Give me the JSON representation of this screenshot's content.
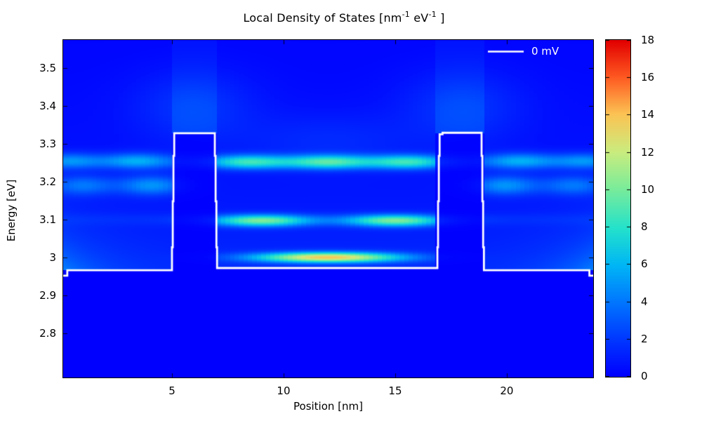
{
  "figure": {
    "title": {
      "pre": "Local Density of States [nm",
      "sup1": "-1",
      "mid": " eV",
      "sup2": "-1",
      "end": " ]"
    }
  },
  "axes": {
    "x": {
      "label": "Position [nm]",
      "range": [
        0.126,
        23.87
      ],
      "ticks": [
        5,
        10,
        15,
        20
      ]
    },
    "y": {
      "label": "Energy [eV]",
      "range": [
        2.683,
        3.574
      ],
      "ticks": [
        2.8,
        2.9,
        3,
        3.1,
        3.2,
        3.3,
        3.4,
        3.5
      ]
    },
    "colorbar": {
      "range": [
        0,
        18
      ],
      "ticks": [
        0,
        2,
        4,
        6,
        8,
        10,
        12,
        14,
        16,
        18
      ]
    }
  },
  "legend": {
    "label": "0 mV",
    "line_color": "#ffffff"
  },
  "chart_data": {
    "type": "heatmap",
    "title": "Local Density of States [nm-1 eV-1]",
    "xlabel": "Position [nm]",
    "ylabel": "Energy [eV]",
    "x_range_nm": [
      0.126,
      23.87
    ],
    "energy_range_eV": [
      2.683,
      3.574
    ],
    "value_range": [
      0,
      18
    ],
    "x_quantum_nm": 0.2,
    "colormap_stops": [
      [
        0.0,
        "#0000ff"
      ],
      [
        0.11,
        "#0038ff"
      ],
      [
        0.22,
        "#0076ff"
      ],
      [
        0.33,
        "#00b6f6"
      ],
      [
        0.44,
        "#24e2cc"
      ],
      [
        0.56,
        "#7cec9a"
      ],
      [
        0.67,
        "#ccec7e"
      ],
      [
        0.78,
        "#fcc454"
      ],
      [
        0.89,
        "#ff5a22"
      ],
      [
        1.0,
        "#e20000"
      ]
    ],
    "potential_levels_eV": [
      [
        0.126,
        5.0,
        2.966
      ],
      [
        5.0,
        7.02,
        3.328
      ],
      [
        7.02,
        16.89,
        2.972
      ],
      [
        16.89,
        18.98,
        3.328
      ],
      [
        18.98,
        23.87,
        2.966
      ]
    ],
    "potential_profile_0mV": [
      [
        0.126,
        2.952
      ],
      [
        0.31,
        2.952
      ],
      [
        0.31,
        2.966
      ],
      [
        5.0,
        2.966
      ],
      [
        5.0,
        3.027
      ],
      [
        5.035,
        3.027
      ],
      [
        5.035,
        3.148
      ],
      [
        5.065,
        3.148
      ],
      [
        5.065,
        3.268
      ],
      [
        5.1,
        3.268
      ],
      [
        5.1,
        3.328
      ],
      [
        6.92,
        3.328
      ],
      [
        6.92,
        3.268
      ],
      [
        6.955,
        3.268
      ],
      [
        6.955,
        3.148
      ],
      [
        6.99,
        3.148
      ],
      [
        6.99,
        3.027
      ],
      [
        7.02,
        3.027
      ],
      [
        7.02,
        2.972
      ],
      [
        16.89,
        2.972
      ],
      [
        16.89,
        3.027
      ],
      [
        16.92,
        3.027
      ],
      [
        16.92,
        3.148
      ],
      [
        16.955,
        3.148
      ],
      [
        16.955,
        3.268
      ],
      [
        16.99,
        3.268
      ],
      [
        16.99,
        3.325
      ],
      [
        17.12,
        3.325
      ],
      [
        17.12,
        3.329
      ],
      [
        18.87,
        3.329
      ],
      [
        18.87,
        3.268
      ],
      [
        18.905,
        3.268
      ],
      [
        18.905,
        3.148
      ],
      [
        18.94,
        3.148
      ],
      [
        18.94,
        3.027
      ],
      [
        18.975,
        3.027
      ],
      [
        18.975,
        2.966
      ],
      [
        23.7,
        2.966
      ],
      [
        23.7,
        2.952
      ],
      [
        23.87,
        2.952
      ]
    ],
    "resonance_features": [
      {
        "x": 12.0,
        "E": 3.0,
        "sx": 2.3,
        "sE": 0.0095,
        "amp": 12.5
      },
      {
        "x": 9.0,
        "E": 3.097,
        "sx": 1.55,
        "sE": 0.011,
        "amp": 8.5
      },
      {
        "x": 15.0,
        "E": 3.097,
        "sx": 1.55,
        "sE": 0.011,
        "amp": 8.5
      },
      {
        "x": 8.4,
        "E": 3.252,
        "sx": 1.25,
        "sE": 0.013,
        "amp": 6.0
      },
      {
        "x": 12.0,
        "E": 3.252,
        "sx": 1.35,
        "sE": 0.013,
        "amp": 6.5
      },
      {
        "x": 15.6,
        "E": 3.252,
        "sx": 1.25,
        "sE": 0.013,
        "amp": 6.0
      },
      {
        "x": 4.1,
        "E": 3.19,
        "sx": 1.05,
        "sE": 0.018,
        "amp": 4.2
      },
      {
        "x": 1.0,
        "E": 3.19,
        "sx": 1.0,
        "sE": 0.018,
        "amp": 3.2
      },
      {
        "x": 3.4,
        "E": 3.255,
        "sx": 1.1,
        "sE": 0.015,
        "amp": 3.8
      },
      {
        "x": 0.4,
        "E": 3.255,
        "sx": 1.0,
        "sE": 0.015,
        "amp": 3.2
      },
      {
        "x": 19.9,
        "E": 3.19,
        "sx": 1.05,
        "sE": 0.018,
        "amp": 4.2
      },
      {
        "x": 23.0,
        "E": 3.19,
        "sx": 1.0,
        "sE": 0.018,
        "amp": 3.2
      },
      {
        "x": 20.6,
        "E": 3.255,
        "sx": 1.1,
        "sE": 0.015,
        "amp": 3.8
      },
      {
        "x": 23.5,
        "E": 3.255,
        "sx": 1.0,
        "sE": 0.015,
        "amp": 3.2
      },
      {
        "x": 6.0,
        "E": 3.4,
        "sx": 1.9,
        "sE": 0.065,
        "amp": 1.5
      },
      {
        "x": 18.0,
        "E": 3.4,
        "sx": 1.9,
        "sE": 0.065,
        "amp": 1.5
      },
      {
        "x": 12.0,
        "E": 3.31,
        "sx": 2.8,
        "sE": 0.05,
        "amp": 1.0
      },
      {
        "x": 12.0,
        "E": 3.252,
        "sx": 12.0,
        "sE": 0.014,
        "amp": 1.8
      },
      {
        "x": 12.0,
        "E": 3.1,
        "sx": 12.0,
        "sE": 0.012,
        "amp": 0.8
      }
    ],
    "background_model": {
      "base_amp": 1.4,
      "base_decay_eV": 0.3,
      "edge_glow_amp": 3.0,
      "edge_glow_decay_nm": 2.0,
      "edge_glow_decay_eV": 0.09,
      "sub_band_leak_factor": 0.25
    }
  }
}
